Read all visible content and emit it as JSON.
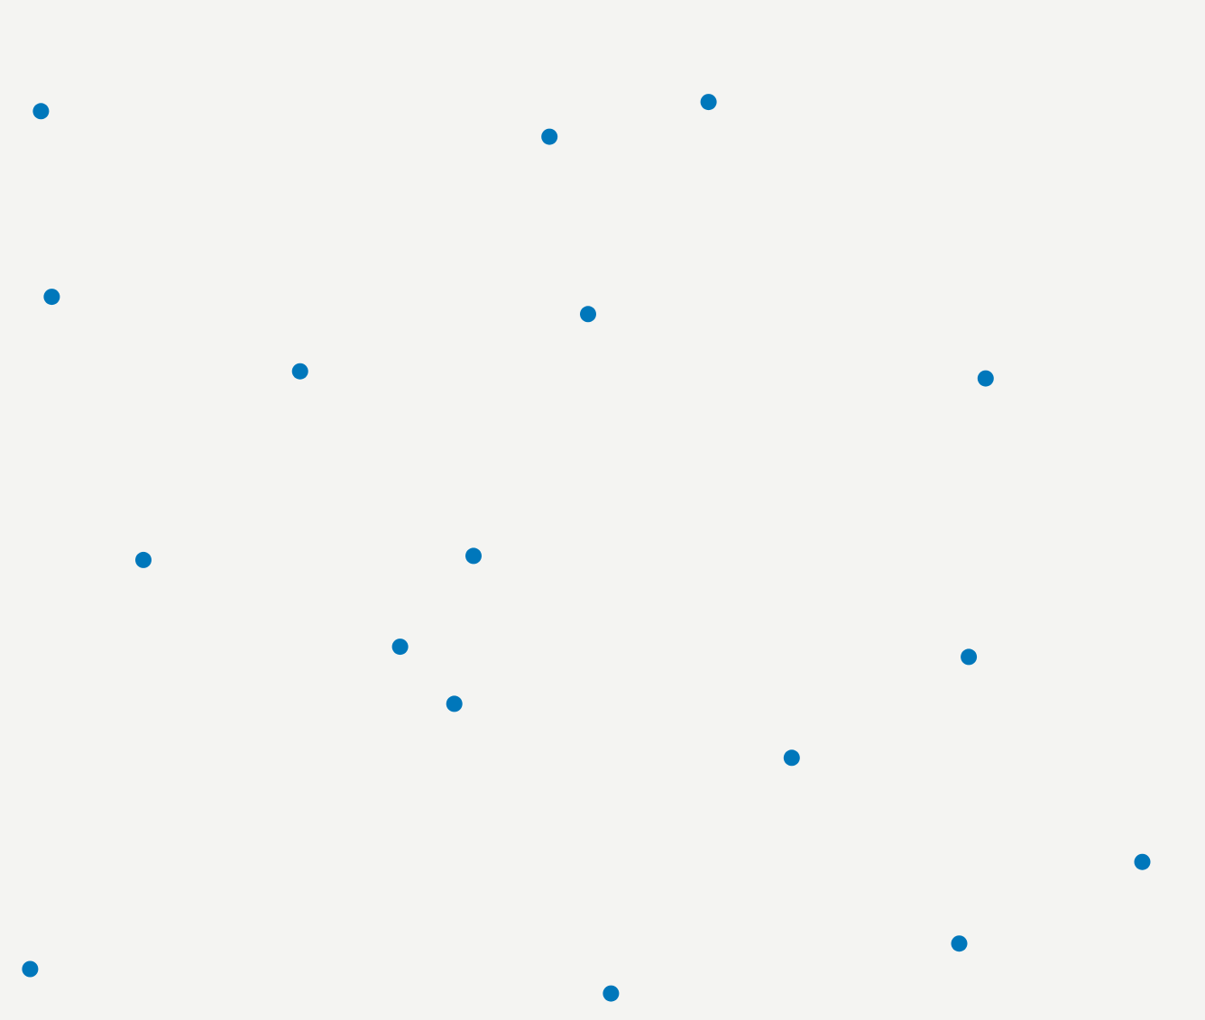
{
  "background": "#f4f4f2",
  "chart_data": {
    "type": "scatter",
    "marker_color": "#0077bb",
    "grid": false,
    "axes_visible": false,
    "legend": "none",
    "xlim": [
      0,
      100
    ],
    "ylim": [
      0,
      100
    ],
    "points": [
      {
        "x": 3.4,
        "y": 89.1
      },
      {
        "x": 45.6,
        "y": 86.6
      },
      {
        "x": 58.8,
        "y": 90.0
      },
      {
        "x": 4.3,
        "y": 70.9
      },
      {
        "x": 48.8,
        "y": 69.2
      },
      {
        "x": 24.9,
        "y": 63.6
      },
      {
        "x": 81.8,
        "y": 62.9
      },
      {
        "x": 11.9,
        "y": 45.1
      },
      {
        "x": 39.3,
        "y": 45.5
      },
      {
        "x": 33.2,
        "y": 36.6
      },
      {
        "x": 80.4,
        "y": 35.6
      },
      {
        "x": 37.7,
        "y": 31.0
      },
      {
        "x": 65.7,
        "y": 25.7
      },
      {
        "x": 94.8,
        "y": 15.5
      },
      {
        "x": 79.6,
        "y": 7.5
      },
      {
        "x": 2.5,
        "y": 5.0
      },
      {
        "x": 50.7,
        "y": 2.6
      }
    ]
  }
}
